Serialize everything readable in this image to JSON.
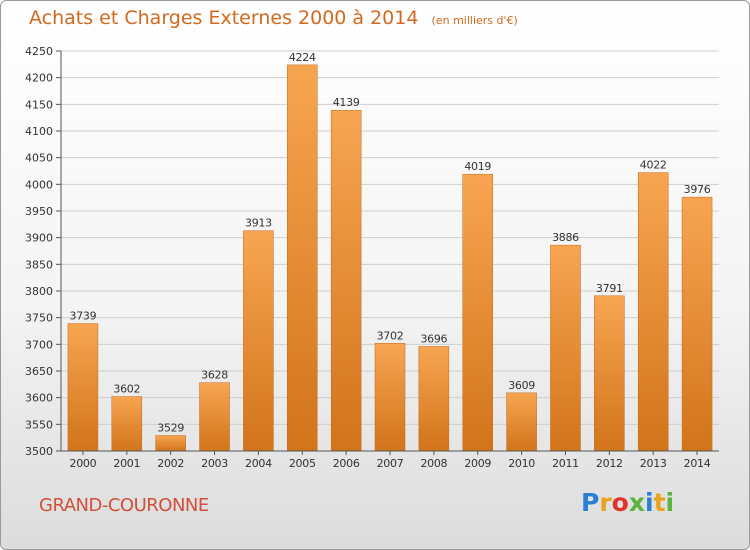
{
  "header": {
    "title": "Achats et Charges Externes 2000 à 2014",
    "unit": "(en milliers d'€)"
  },
  "footer": {
    "city": "GRAND-COURONNE",
    "logo": "Proxiti",
    "logo_colors": [
      "#2a7fd4",
      "#e8a21c",
      "#e0352b",
      "#59b33c",
      "#2a7fd4",
      "#e8a21c",
      "#59b33c"
    ]
  },
  "colors": {
    "bar_light": "#f7a552",
    "bar_dark": "#d2741a",
    "title": "#d2691e",
    "city": "#d0503c"
  },
  "chart_data": {
    "type": "bar",
    "categories": [
      "2000",
      "2001",
      "2002",
      "2003",
      "2004",
      "2005",
      "2006",
      "2007",
      "2008",
      "2009",
      "2010",
      "2011",
      "2012",
      "2013",
      "2014"
    ],
    "values": [
      3739,
      3602,
      3529,
      3628,
      3913,
      4224,
      4139,
      3702,
      3696,
      4019,
      3609,
      3886,
      3791,
      4022,
      3976
    ],
    "value_labels": [
      "3739",
      "3602",
      "3529",
      "3628",
      "3913",
      "4224",
      "4139",
      "3702",
      "3696",
      "4019",
      "3609",
      "3886",
      "3791",
      "4022",
      "3976"
    ],
    "ylim": [
      3500,
      4250
    ],
    "yticks": [
      3500,
      3550,
      3600,
      3650,
      3700,
      3750,
      3800,
      3850,
      3900,
      3950,
      4000,
      4050,
      4100,
      4150,
      4200,
      4250
    ],
    "ytick_labels": [
      "3500",
      "3550",
      "3600",
      "3650",
      "3700",
      "3750",
      "3800",
      "3850",
      "3900",
      "3950",
      "4000",
      "4050",
      "4100",
      "4150",
      "4200",
      "4250"
    ],
    "grid": true,
    "title": "Achats et Charges Externes 2000 à 2014",
    "xlabel": "",
    "ylabel": ""
  }
}
